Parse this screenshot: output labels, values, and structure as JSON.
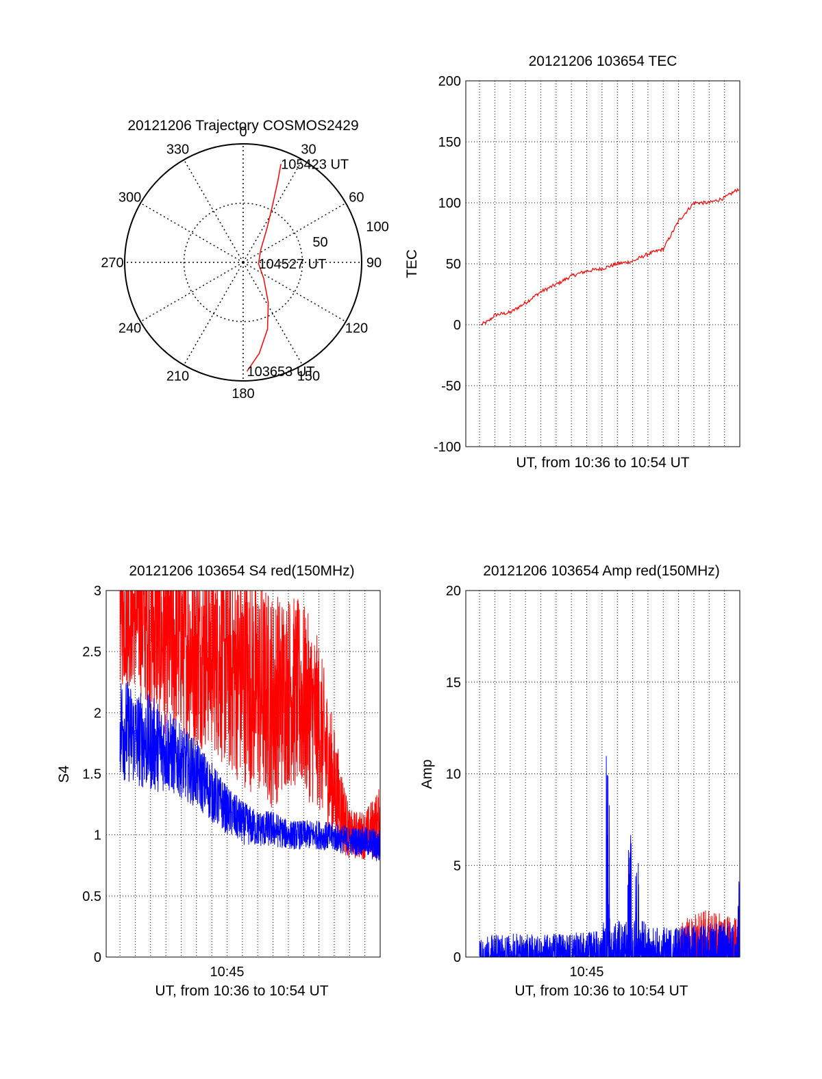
{
  "colors": {
    "red": "#ff0000",
    "blue": "#0000ff",
    "axis": "#000000",
    "grid": "#000000"
  },
  "chart_data": [
    {
      "id": "trajectory",
      "type": "polar",
      "title": "20121206 Trajectory COSMOS2429",
      "angle_ticks": [
        "0",
        "30",
        "60",
        "90",
        "120",
        "150",
        "180",
        "210",
        "240",
        "270",
        "300",
        "330"
      ],
      "angle_values": [
        0,
        30,
        60,
        90,
        120,
        150,
        180,
        210,
        240,
        270,
        300,
        330
      ],
      "radial_ticks": [
        "50",
        "100"
      ],
      "radial_values": [
        50,
        100
      ],
      "rlim": [
        0,
        100
      ],
      "grid": true,
      "series": [
        {
          "color": "#ff0000",
          "points": [
            {
              "az": 178,
              "r": 92
            },
            {
              "az": 170,
              "r": 78
            },
            {
              "az": 160,
              "r": 60
            },
            {
              "az": 148,
              "r": 40
            },
            {
              "az": 128,
              "r": 22
            },
            {
              "az": 95,
              "r": 13
            },
            {
              "az": 55,
              "r": 18
            },
            {
              "az": 35,
              "r": 35
            },
            {
              "az": 27,
              "r": 55
            },
            {
              "az": 23,
              "r": 75
            },
            {
              "az": 21,
              "r": 89
            }
          ]
        }
      ],
      "annotations": [
        {
          "text": "105423 UT",
          "az": 21,
          "r": 89
        },
        {
          "text": "104527 UT",
          "az": 95,
          "r": 13
        },
        {
          "text": "103653 UT",
          "az": 178,
          "r": 92
        }
      ]
    },
    {
      "id": "tec",
      "type": "line",
      "title": "20121206 103654 TEC",
      "xlabel": "UT, from 10:36 to 10:54 UT",
      "ylabel": "TEC",
      "ylim": [
        -100,
        200
      ],
      "yticks": [
        "-100",
        "-50",
        "0",
        "50",
        "100",
        "150",
        "200"
      ],
      "ytick_values": [
        -100,
        -50,
        0,
        50,
        100,
        150,
        200
      ],
      "xlim_minutes": [
        10.1,
        28.0
      ],
      "grid": true,
      "series": [
        {
          "color": "#ff0000",
          "t_minutes": [
            11.1,
            11.6,
            12.0,
            13.0,
            14.0,
            15.0,
            16.0,
            17.0,
            18.0,
            19.0,
            20.0,
            21.0,
            22.0,
            23.0,
            24.0,
            25.0,
            26.0,
            27.0,
            28.0
          ],
          "values": [
            0,
            3,
            8,
            10,
            18,
            27,
            33,
            40,
            44,
            46,
            50,
            52,
            58,
            62,
            85,
            100,
            100,
            104,
            112
          ]
        }
      ]
    },
    {
      "id": "s4",
      "type": "line",
      "title": "20121206 103654 S4 red(150MHz)",
      "xlabel": "UT, from 10:36 to 10:54 UT",
      "ylabel": "S4",
      "ylim": [
        0,
        3
      ],
      "yticks": [
        "0",
        "0.5",
        "1",
        "1.5",
        "2",
        "2.5",
        "3"
      ],
      "ytick_values": [
        0,
        0.5,
        1,
        1.5,
        2,
        2.5,
        3
      ],
      "xtick_label": "10:45",
      "xtick_minute": 18,
      "xlim_minutes": [
        10.1,
        28.0
      ],
      "grid": true,
      "series": [
        {
          "color": "#ff0000",
          "t_minutes": [
            11.0,
            12.0,
            13.0,
            14.0,
            15.0,
            16.0,
            17.0,
            18.0,
            19.0,
            20.0,
            21.0,
            22.0,
            23.0,
            24.0,
            25.0,
            26.0,
            27.0,
            28.0
          ],
          "mean": [
            2.8,
            2.8,
            2.7,
            2.6,
            2.6,
            2.5,
            2.5,
            2.4,
            2.3,
            2.2,
            2.1,
            2.2,
            2.1,
            1.9,
            1.4,
            1.0,
            1.0,
            1.1
          ],
          "spread": [
            0.6,
            0.6,
            0.7,
            0.8,
            0.8,
            0.8,
            0.8,
            0.9,
            0.9,
            0.9,
            0.9,
            0.8,
            0.8,
            0.7,
            0.5,
            0.2,
            0.2,
            0.3
          ]
        },
        {
          "color": "#0000ff",
          "t_minutes": [
            11.0,
            12.0,
            13.0,
            14.0,
            15.0,
            16.0,
            17.0,
            18.0,
            19.0,
            20.0,
            21.0,
            22.0,
            23.0,
            24.0,
            25.0,
            26.0,
            27.0,
            28.0
          ],
          "mean": [
            1.9,
            1.8,
            1.75,
            1.7,
            1.6,
            1.5,
            1.35,
            1.2,
            1.1,
            1.05,
            1.05,
            1.0,
            1.0,
            1.0,
            0.98,
            0.95,
            0.95,
            0.9
          ],
          "spread": [
            0.45,
            0.4,
            0.4,
            0.35,
            0.3,
            0.28,
            0.25,
            0.2,
            0.18,
            0.15,
            0.15,
            0.12,
            0.12,
            0.12,
            0.12,
            0.12,
            0.12,
            0.15
          ]
        }
      ]
    },
    {
      "id": "amp",
      "type": "line",
      "title": "20121206 103654 Amp red(150MHz)",
      "xlabel": "UT, from 10:36 to 10:54 UT",
      "ylabel": "Amp",
      "ylim": [
        0,
        20
      ],
      "yticks": [
        "0",
        "5",
        "10",
        "15",
        "20"
      ],
      "ytick_values": [
        0,
        5,
        10,
        15,
        20
      ],
      "xtick_label": "10:45",
      "xtick_minute": 18,
      "xlim_minutes": [
        10.1,
        28.0
      ],
      "grid": true,
      "series": [
        {
          "color": "#ff0000",
          "t_minutes": [
            24.0,
            25.0,
            26.0,
            27.0,
            28.0
          ],
          "values": [
            1.8,
            2.4,
            2.6,
            2.3,
            2.2
          ]
        },
        {
          "color": "#0000ff",
          "t_minutes": [
            11.0,
            14.0,
            17.0,
            18.0,
            19.0,
            19.4,
            20.0,
            20.8,
            21.3,
            22.0,
            24.0,
            26.0,
            28.0
          ],
          "values": [
            1.2,
            1.3,
            1.3,
            1.4,
            1.5,
            11.0,
            1.6,
            6.8,
            5.2,
            1.6,
            1.7,
            1.8,
            5.0
          ]
        }
      ]
    }
  ]
}
